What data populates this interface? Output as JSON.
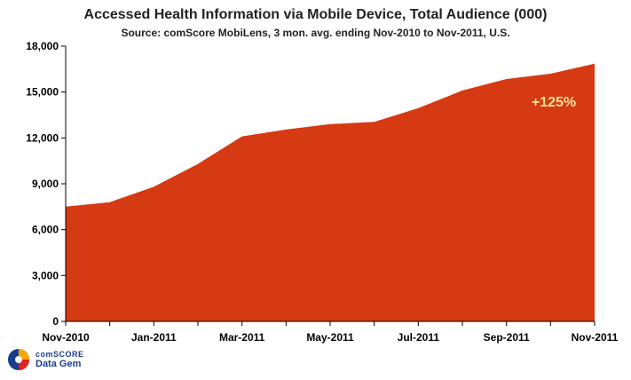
{
  "chart_data": {
    "type": "area",
    "title": "Accessed Health Information via Mobile Device, Total Audience (000)",
    "subtitle": "Source: comScore MobiLens, 3 mon. avg. ending Nov-2010 to Nov-2011, U.S.",
    "xlabel": "",
    "ylabel": "",
    "x": [
      "Nov-2010",
      "Dec-2010",
      "Jan-2011",
      "Feb-2011",
      "Mar-2011",
      "Apr-2011",
      "May-2011",
      "Jun-2011",
      "Jul-2011",
      "Aug-2011",
      "Sep-2011",
      "Oct-2011",
      "Nov-2011"
    ],
    "x_tick_labels": [
      "Nov-2010",
      "Jan-2011",
      "Mar-2011",
      "May-2011",
      "Jul-2011",
      "Sep-2011",
      "Nov-2011"
    ],
    "values": [
      7500,
      7800,
      8800,
      10300,
      12100,
      12550,
      12900,
      13050,
      13950,
      15100,
      15850,
      16200,
      16850
    ],
    "ylim": [
      0,
      18000
    ],
    "yticks": [
      0,
      3000,
      6000,
      9000,
      12000,
      15000,
      18000
    ],
    "ytick_labels": [
      "0",
      "3,000",
      "6,000",
      "9,000",
      "12,000",
      "15,000",
      "18,000"
    ],
    "annotation": "+125%",
    "fill_color": "#d63a12",
    "annotation_color": "#ffe39a",
    "grid": false,
    "legend": "none"
  },
  "brand": {
    "top": "comSCORE",
    "bottom": "Data Gem",
    "icon": "comscore-logo-icon"
  }
}
